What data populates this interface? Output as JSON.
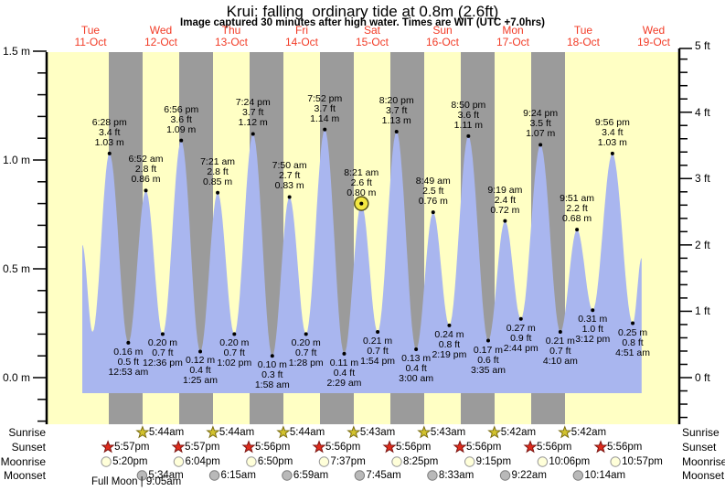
{
  "title": "Krui: falling  ordinary tide at 0.8m (2.6ft)",
  "subtitle": "Image captured 30 minutes after high water. Times are WIT (UTC +7.0hrs)",
  "colors": {
    "plot_bg": "#ffffc4",
    "night_band": "#9b9b9b",
    "tide_area": "#a9b6ef",
    "day_label": "#f23b26",
    "axis": "#000000",
    "current_marker_fill": "#f3e841",
    "current_marker_stroke": "#55521a",
    "sunrise_star_fill": "#d2c22e",
    "sunrise_star_stroke": "#7a6c10",
    "sunset_star_fill": "#df2b1c",
    "sunset_star_stroke": "#7a1410",
    "moonrise_circle_fill": "#ffffd9",
    "moonrise_circle_stroke": "#999999",
    "moonset_circle_fill": "#b9b9b9",
    "moonset_circle_stroke": "#7d7d7d"
  },
  "y_axis_left": {
    "unit": "m",
    "major_labels": [
      "1.5 m",
      "1.0 m",
      "0.5 m",
      "0.0 m"
    ]
  },
  "y_axis_right": {
    "unit": "ft",
    "major_labels": [
      "5 ft",
      "4 ft",
      "3 ft",
      "2 ft",
      "1 ft",
      "0 ft"
    ]
  },
  "chart_data": {
    "type": "area",
    "title": "Krui: falling  ordinary tide at 0.8m (2.6ft)",
    "subtitle": "Image captured 30 minutes after high water. Times are WIT (UTC +7.0hrs)",
    "days": [
      {
        "name": "Tue",
        "date": "11-Oct"
      },
      {
        "name": "Wed",
        "date": "12-Oct"
      },
      {
        "name": "Thu",
        "date": "13-Oct"
      },
      {
        "name": "Fri",
        "date": "14-Oct"
      },
      {
        "name": "Sat",
        "date": "15-Oct"
      },
      {
        "name": "Sun",
        "date": "16-Oct"
      },
      {
        "name": "Mon",
        "date": "17-Oct"
      },
      {
        "name": "Tue",
        "date": "18-Oct"
      },
      {
        "name": "Wed",
        "date": "19-Oct"
      }
    ],
    "ylim_m": [
      -0.22,
      1.5
    ],
    "ylim_ft": [
      -0.72,
      5.0
    ],
    "grid": false,
    "tide_events": [
      {
        "type": "edge",
        "day": 0,
        "hour": 9.2,
        "height_m": "0.61",
        "labeled": false
      },
      {
        "type": "low",
        "day": 0,
        "hour": 12.7,
        "height_m": "0.21",
        "labeled": false
      },
      {
        "type": "high",
        "day": 0,
        "time": "6:28 pm",
        "height_ft": "3.4",
        "height_m": "1.03",
        "labeled": true
      },
      {
        "type": "low",
        "day": 1,
        "time": "12:53 am",
        "height_ft": "0.5",
        "height_m": "0.16",
        "labeled": true
      },
      {
        "type": "high",
        "day": 1,
        "time": "6:52 am",
        "height_ft": "2.8",
        "height_m": "0.86",
        "labeled": true
      },
      {
        "type": "low",
        "day": 1,
        "time": "12:36 pm",
        "height_ft": "0.7",
        "height_m": "0.20",
        "labeled": true
      },
      {
        "type": "high",
        "day": 1,
        "time": "6:56 pm",
        "height_ft": "3.6",
        "height_m": "1.09",
        "labeled": true
      },
      {
        "type": "low",
        "day": 2,
        "time": "1:25 am",
        "height_ft": "0.4",
        "height_m": "0.12",
        "labeled": true
      },
      {
        "type": "high",
        "day": 2,
        "time": "7:21 am",
        "height_ft": "2.8",
        "height_m": "0.85",
        "labeled": true
      },
      {
        "type": "low",
        "day": 2,
        "time": "1:02 pm",
        "height_ft": "0.7",
        "height_m": "0.20",
        "labeled": true
      },
      {
        "type": "high",
        "day": 2,
        "time": "7:24 pm",
        "height_ft": "3.7",
        "height_m": "1.12",
        "labeled": true
      },
      {
        "type": "low",
        "day": 3,
        "time": "1:58 am",
        "height_ft": "0.3",
        "height_m": "0.10",
        "labeled": true
      },
      {
        "type": "high",
        "day": 3,
        "time": "7:50 am",
        "height_ft": "2.7",
        "height_m": "0.83",
        "labeled": true
      },
      {
        "type": "low",
        "day": 3,
        "time": "1:28 pm",
        "height_ft": "0.7",
        "height_m": "0.20",
        "labeled": true
      },
      {
        "type": "high",
        "day": 3,
        "time": "7:52 pm",
        "height_ft": "3.7",
        "height_m": "1.14",
        "labeled": true
      },
      {
        "type": "low",
        "day": 4,
        "time": "2:29 am",
        "height_ft": "0.4",
        "height_m": "0.11",
        "labeled": true
      },
      {
        "type": "high",
        "day": 4,
        "time": "8:21 am",
        "height_ft": "2.6",
        "height_m": "0.80",
        "labeled": true,
        "current": true
      },
      {
        "type": "low",
        "day": 4,
        "time": "1:54 pm",
        "height_ft": "0.7",
        "height_m": "0.21",
        "labeled": true
      },
      {
        "type": "high",
        "day": 4,
        "time": "8:20 pm",
        "height_ft": "3.7",
        "height_m": "1.13",
        "labeled": true
      },
      {
        "type": "low",
        "day": 5,
        "time": "3:00 am",
        "height_ft": "0.4",
        "height_m": "0.13",
        "labeled": true
      },
      {
        "type": "high",
        "day": 5,
        "time": "8:49 am",
        "height_ft": "2.5",
        "height_m": "0.76",
        "labeled": true
      },
      {
        "type": "low",
        "day": 5,
        "time": "2:19 pm",
        "height_ft": "0.8",
        "height_m": "0.24",
        "labeled": true
      },
      {
        "type": "high",
        "day": 5,
        "time": "8:50 pm",
        "height_ft": "3.6",
        "height_m": "1.11",
        "labeled": true
      },
      {
        "type": "low",
        "day": 6,
        "time": "3:35 am",
        "height_ft": "0.6",
        "height_m": "0.17",
        "labeled": true
      },
      {
        "type": "high",
        "day": 6,
        "time": "9:19 am",
        "height_ft": "2.4",
        "height_m": "0.72",
        "labeled": true
      },
      {
        "type": "low",
        "day": 6,
        "time": "2:44 pm",
        "height_ft": "0.9",
        "height_m": "0.27",
        "labeled": true
      },
      {
        "type": "high",
        "day": 6,
        "time": "9:24 pm",
        "height_ft": "3.5",
        "height_m": "1.07",
        "labeled": true
      },
      {
        "type": "low",
        "day": 7,
        "time": "4:10 am",
        "height_ft": "0.7",
        "height_m": "0.21",
        "labeled": true
      },
      {
        "type": "high",
        "day": 7,
        "time": "9:51 am",
        "height_ft": "2.2",
        "height_m": "0.68",
        "labeled": true
      },
      {
        "type": "low",
        "day": 7,
        "time": "3:12 pm",
        "height_ft": "1.0",
        "height_m": "0.31",
        "labeled": true
      },
      {
        "type": "high",
        "day": 7,
        "time": "9:56 pm",
        "height_ft": "3.4",
        "height_m": "1.03",
        "labeled": true
      },
      {
        "type": "low",
        "day": 8,
        "time": "4:51 am",
        "height_ft": "0.8",
        "height_m": "0.25",
        "labeled": true
      },
      {
        "type": "edge",
        "day": 8,
        "hour": 7.9,
        "height_m": "0.55",
        "labeled": false
      }
    ],
    "night_band_midnights": [
      1,
      2,
      3,
      4,
      5,
      6,
      7
    ]
  },
  "astro": {
    "row_labels": [
      "Sunrise",
      "Sunset",
      "Moonrise",
      "Moonset"
    ],
    "sunrise": [
      {
        "day": 1,
        "time": "5:44am"
      },
      {
        "day": 2,
        "time": "5:44am"
      },
      {
        "day": 3,
        "time": "5:44am"
      },
      {
        "day": 4,
        "time": "5:43am"
      },
      {
        "day": 5,
        "time": "5:43am"
      },
      {
        "day": 6,
        "time": "5:42am"
      },
      {
        "day": 7,
        "time": "5:42am"
      }
    ],
    "sunset": [
      {
        "day": 0,
        "time": "5:57pm"
      },
      {
        "day": 1,
        "time": "5:57pm"
      },
      {
        "day": 2,
        "time": "5:56pm"
      },
      {
        "day": 3,
        "time": "5:56pm"
      },
      {
        "day": 4,
        "time": "5:56pm"
      },
      {
        "day": 5,
        "time": "5:56pm"
      },
      {
        "day": 6,
        "time": "5:56pm"
      },
      {
        "day": 7,
        "time": "5:56pm"
      }
    ],
    "moonrise": [
      {
        "day": 0,
        "time": "5:20pm"
      },
      {
        "day": 1,
        "time": "6:04pm"
      },
      {
        "day": 2,
        "time": "6:50pm"
      },
      {
        "day": 3,
        "time": "7:37pm"
      },
      {
        "day": 4,
        "time": "8:25pm"
      },
      {
        "day": 5,
        "time": "9:15pm"
      },
      {
        "day": 6,
        "time": "10:06pm"
      },
      {
        "day": 7,
        "time": "10:57pm"
      }
    ],
    "moonset": [
      {
        "day": 1,
        "time": "5:34am"
      },
      {
        "day": 2,
        "time": "6:15am"
      },
      {
        "day": 3,
        "time": "6:59am"
      },
      {
        "day": 4,
        "time": "7:45am"
      },
      {
        "day": 5,
        "time": "8:33am"
      },
      {
        "day": 6,
        "time": "9:22am"
      },
      {
        "day": 7,
        "time": "10:14am"
      }
    ],
    "footnote": "Full Moon | 9:05am"
  }
}
